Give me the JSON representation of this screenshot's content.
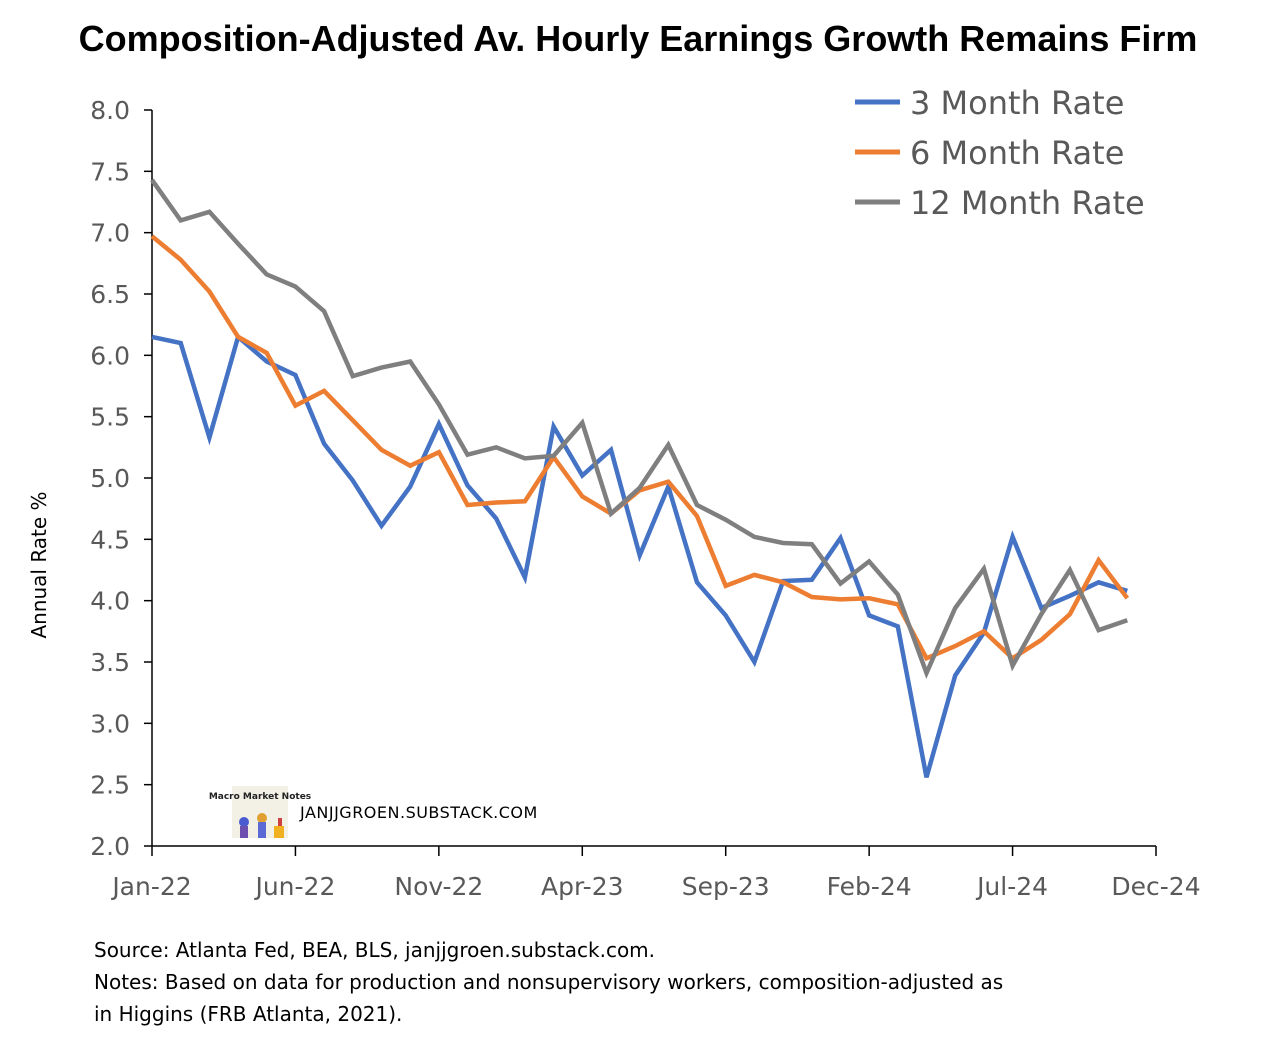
{
  "chart_data": {
    "type": "line",
    "title": "Composition-Adjusted Av. Hourly Earnings Growth Remains Firm",
    "ylabel": "Annual Rate %",
    "xlabel": "",
    "ylim": [
      2.0,
      8.0
    ],
    "yticks": [
      "2.0",
      "2.5",
      "3.0",
      "3.5",
      "4.0",
      "4.5",
      "5.0",
      "5.5",
      "6.0",
      "6.5",
      "7.0",
      "7.5",
      "8.0"
    ],
    "xtick_labels": [
      "Jan-22",
      "Jun-22",
      "Nov-22",
      "Apr-23",
      "Sep-23",
      "Feb-24",
      "Jul-24",
      "Dec-24"
    ],
    "x": [
      "Jan-22",
      "Feb-22",
      "Mar-22",
      "Apr-22",
      "May-22",
      "Jun-22",
      "Jul-22",
      "Aug-22",
      "Sep-22",
      "Oct-22",
      "Nov-22",
      "Dec-22",
      "Jan-23",
      "Feb-23",
      "Mar-23",
      "Apr-23",
      "May-23",
      "Jun-23",
      "Jul-23",
      "Aug-23",
      "Sep-23",
      "Oct-23",
      "Nov-23",
      "Dec-23",
      "Jan-24",
      "Feb-24",
      "Mar-24",
      "Apr-24",
      "May-24",
      "Jun-24",
      "Jul-24",
      "Aug-24",
      "Sep-24",
      "Oct-24",
      "Nov-24"
    ],
    "legend_position": "top-right",
    "grid": false,
    "series": [
      {
        "name": "3 Month Rate",
        "color": "#4472C4",
        "values": [
          6.15,
          6.1,
          5.33,
          6.15,
          5.95,
          5.84,
          5.28,
          4.98,
          4.61,
          4.93,
          5.44,
          4.94,
          4.67,
          4.19,
          5.42,
          5.02,
          5.23,
          4.37,
          4.93,
          4.15,
          3.88,
          3.5,
          4.16,
          4.17,
          4.51,
          3.88,
          3.79,
          2.56,
          3.39,
          3.74,
          4.52,
          3.94,
          4.04,
          4.15,
          4.08
        ]
      },
      {
        "name": "6 Month Rate",
        "color": "#ED7D31",
        "values": [
          6.97,
          6.78,
          6.52,
          6.15,
          6.02,
          5.59,
          5.71,
          5.47,
          5.23,
          5.1,
          5.21,
          4.78,
          4.8,
          4.81,
          5.17,
          4.85,
          4.71,
          4.9,
          4.97,
          4.69,
          4.12,
          4.21,
          4.15,
          4.03,
          4.01,
          4.02,
          3.97,
          3.53,
          3.63,
          3.75,
          3.53,
          3.68,
          3.89,
          4.33,
          4.02
        ]
      },
      {
        "name": "12 Month Rate",
        "color": "#7F7F7F",
        "values": [
          7.43,
          7.1,
          7.17,
          6.91,
          6.66,
          6.56,
          6.36,
          5.83,
          5.9,
          5.95,
          5.6,
          5.19,
          5.25,
          5.16,
          5.18,
          5.45,
          4.71,
          4.92,
          5.27,
          4.78,
          4.66,
          4.52,
          4.47,
          4.46,
          4.14,
          4.32,
          4.05,
          3.41,
          3.94,
          4.26,
          3.47,
          3.89,
          4.25,
          3.76,
          3.84
        ]
      }
    ],
    "watermark_text": "JANJJGROEN.SUBSTACK.COM",
    "logo_text": "Macro Market Notes"
  },
  "notes": {
    "source": "Source: Atlanta Fed, BEA, BLS, janjjgroen.substack.com.",
    "notes_line1": "Notes: Based on data for production and nonsupervisory workers, composition-adjusted as",
    "notes_line2": "in Higgins (FRB Atlanta, 2021)."
  }
}
